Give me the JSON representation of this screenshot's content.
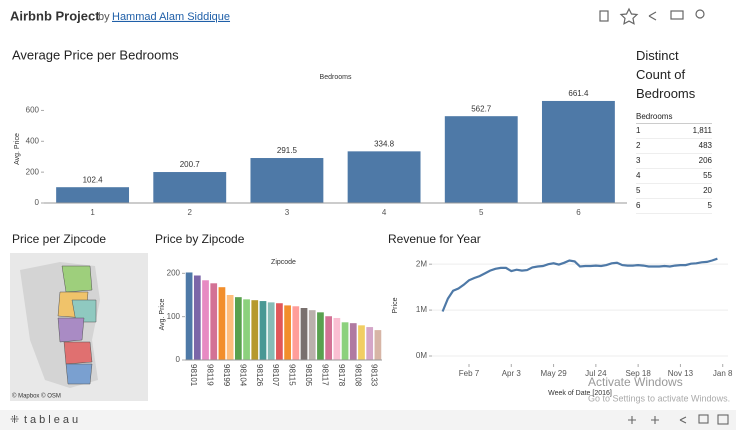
{
  "header": {
    "title": "Airbnb Project",
    "by": "by",
    "author": "Hammad Alam Siddique"
  },
  "chart_data": [
    {
      "type": "bar",
      "title": "Average Price per  Bedrooms",
      "x_label": "Bedrooms",
      "y_label": "Avg. Price",
      "categories": [
        "1",
        "2",
        "3",
        "4",
        "5",
        "6"
      ],
      "values": [
        102.4,
        200.7,
        291.5,
        334.8,
        562.7,
        661.4
      ],
      "value_labels": [
        "102.4",
        "200.7",
        "291.5",
        "334.8",
        "562.7",
        "661.4"
      ],
      "color": "#4e79a7",
      "ylim": [
        0,
        700
      ],
      "yticks": [
        0,
        200,
        400,
        600
      ],
      "grid": false
    },
    {
      "type": "bar",
      "title": "Price by Zipcode",
      "x_label": "Zipcode",
      "y_label": "Avg. Price",
      "categories": [
        "98101",
        null,
        "98119",
        null,
        "98199",
        null,
        "98104",
        null,
        "98126",
        null,
        "98107",
        null,
        "98115",
        null,
        "98105",
        null,
        "98117",
        null,
        "98178",
        null,
        "98108",
        null,
        "98133",
        null
      ],
      "values": [
        202,
        195,
        184,
        177,
        168,
        150,
        145,
        140,
        138,
        136,
        133,
        131,
        126,
        124,
        120,
        115,
        110,
        101,
        97,
        87,
        85,
        80,
        76,
        69
      ],
      "colors": [
        "#4e79a7",
        "#7b66a8",
        "#e78ac3",
        "#d37295",
        "#f28e2b",
        "#ffbe7d",
        "#59a14f",
        "#8cd17d",
        "#b6992d",
        "#499894",
        "#86bcb6",
        "#e15759",
        "#f28e2b",
        "#ff9d9a",
        "#79706e",
        "#bab0ac",
        "#59a14f",
        "#d37295",
        "#fabfd2",
        "#8cd17d",
        "#b07aa1",
        "#f1ce63",
        "#d4a6c8",
        "#d7b5a6"
      ],
      "ylim": [
        0,
        210
      ],
      "yticks": [
        0,
        100,
        200
      ],
      "grid": false
    },
    {
      "type": "line",
      "title": "Revenue for Year",
      "x_label": "Week of Date [2016]",
      "y_label": "Price",
      "x": [
        0,
        1,
        2,
        3,
        4,
        5,
        6,
        7,
        8,
        9,
        10,
        11,
        12,
        13,
        14,
        15,
        16,
        17,
        18,
        19,
        20,
        21,
        22,
        23,
        24,
        25,
        26,
        27,
        28,
        29,
        30,
        31,
        32,
        33,
        34,
        35,
        36,
        37,
        38,
        39,
        40,
        41,
        42,
        43,
        44,
        45,
        46,
        47,
        48,
        49,
        50,
        51,
        52
      ],
      "series": [
        {
          "name": "Price",
          "color": "#4e79a7",
          "values": [
            970000,
            1250000,
            1420000,
            1470000,
            1550000,
            1650000,
            1700000,
            1740000,
            1800000,
            1860000,
            1900000,
            1920000,
            1920000,
            1850000,
            1880000,
            1860000,
            1870000,
            1930000,
            1950000,
            1960000,
            2000000,
            2020000,
            1990000,
            2030000,
            2080000,
            2060000,
            1950000,
            1960000,
            1960000,
            1970000,
            1960000,
            1980000,
            2020000,
            2030000,
            1980000,
            1970000,
            1970000,
            1980000,
            1970000,
            1950000,
            1950000,
            1950000,
            1960000,
            1950000,
            1970000,
            1980000,
            1980000,
            2010000,
            2020000,
            2040000,
            2050000,
            2080000,
            2120000
          ]
        }
      ],
      "xlim": [
        -2,
        54
      ],
      "xticks": [
        {
          "value": 5,
          "label": "Feb 7"
        },
        {
          "value": 13,
          "label": "Apr 3"
        },
        {
          "value": 21,
          "label": "May 29"
        },
        {
          "value": 29,
          "label": "Jul 24"
        },
        {
          "value": 37,
          "label": "Sep 18"
        },
        {
          "value": 45,
          "label": "Nov 13"
        },
        {
          "value": 53,
          "label": "Jan 8"
        }
      ],
      "ylim": [
        0,
        2200000
      ],
      "yticks": [
        {
          "value": 0,
          "label": "0M"
        },
        {
          "value": 1000000,
          "label": "1M"
        },
        {
          "value": 2000000,
          "label": "2M"
        }
      ],
      "grid": true
    }
  ],
  "table": {
    "title": "Distinct Count of Bedrooms",
    "column": "Bedrooms",
    "rows": [
      [
        "1",
        "1,811"
      ],
      [
        "2",
        "483"
      ],
      [
        "3",
        "206"
      ],
      [
        "4",
        "55"
      ],
      [
        "5",
        "20"
      ],
      [
        "6",
        "5"
      ]
    ]
  },
  "map": {
    "title": "Price per Zipcode",
    "credit": "© Mapbox © OSM"
  },
  "footer": {
    "brand": "tableau"
  },
  "watermark": {
    "line1": "Activate Windows",
    "line2": "Go to Settings to activate Windows."
  }
}
